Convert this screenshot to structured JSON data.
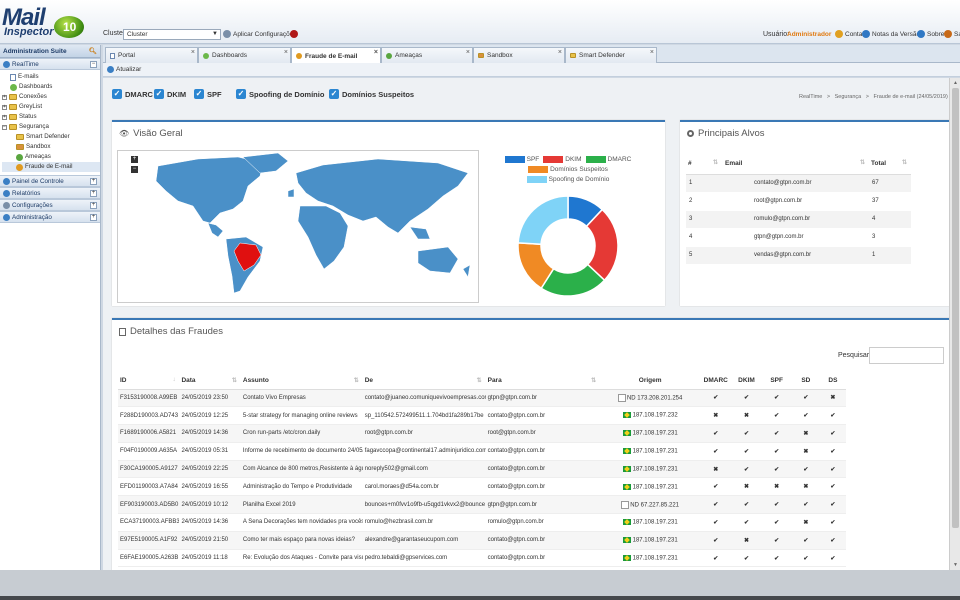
{
  "header": {
    "logo_word": "Mail",
    "logo_word2": "Inspector",
    "logo_badge": "10",
    "cluster_label": "Cluster:",
    "cluster_value": "Cluster",
    "apply_label": "Aplicar Configurações",
    "user_label": "Usuário:",
    "user_name": "Administrador",
    "links": [
      "Conta",
      "Notas da Versão",
      "Sobre",
      "Sa"
    ]
  },
  "sidebar": {
    "title": "Administration Suite",
    "realtime": "RealTime",
    "tree": [
      {
        "label": "E-mails",
        "level": 1,
        "icon": "doc"
      },
      {
        "label": "Dashboards",
        "level": 1,
        "icon": "globe"
      },
      {
        "label": "Conexões",
        "level": 0,
        "icon": "folder"
      },
      {
        "label": "GreyList",
        "level": 0,
        "icon": "folder"
      },
      {
        "label": "Status",
        "level": 0,
        "icon": "folder"
      },
      {
        "label": "Segurança",
        "level": 0,
        "icon": "folder"
      },
      {
        "label": "Smart Defender",
        "level": 2,
        "icon": "folder"
      },
      {
        "label": "Sandbox",
        "level": 2,
        "icon": "box"
      },
      {
        "label": "Ameaças",
        "level": 2,
        "icon": "bug"
      },
      {
        "label": "Fraude de E-mail",
        "level": 2,
        "icon": "fraud"
      }
    ],
    "sections": [
      "Painel de Controle",
      "Relatórios",
      "Configurações",
      "Administração"
    ]
  },
  "tabs": [
    "Portal",
    "Dashboards",
    "Fraude de E-mail",
    "Ameaças",
    "Sandbox",
    "Smart Defender"
  ],
  "toolbar": {
    "refresh": "Atualizar"
  },
  "filters": [
    "DMARC",
    "DKIM",
    "SPF",
    "Spoofing de Domínio",
    "Domínios Suspeitos"
  ],
  "breadcrumb": {
    "items": [
      "RealTime",
      "Segurança",
      "Fraude de e-mail"
    ],
    "date": "24/05/2019",
    "sep": ">"
  },
  "overview": {
    "title": "Visão Geral",
    "zoom_in": "+",
    "zoom_out": "−",
    "legend": [
      {
        "label": "SPF",
        "color": "#1f77d0"
      },
      {
        "label": "DKIM",
        "color": "#e53935"
      },
      {
        "label": "DMARC",
        "color": "#2bb04a"
      },
      {
        "label": "Domínios Suspeitos",
        "color": "#f08a24"
      },
      {
        "label": "Spoofing de Domínio",
        "color": "#7fd3f7"
      }
    ],
    "colors": {
      "map": "#4a90c8",
      "highlight": "#e01010"
    }
  },
  "chart_data": {
    "type": "pie",
    "categories": [
      "SPF",
      "DKIM",
      "DMARC",
      "Domínios Suspeitos",
      "Spoofing de Domínio"
    ],
    "values": [
      12,
      25,
      22,
      17,
      24
    ]
  },
  "top_targets": {
    "title": "Principais Alvos",
    "columns": [
      "#",
      "Email",
      "Total"
    ],
    "rows": [
      [
        "1",
        "contato@gtpn.com.br",
        "67"
      ],
      [
        "2",
        "root@gtpn.com.br",
        "37"
      ],
      [
        "3",
        "romulo@gtpn.com.br",
        "4"
      ],
      [
        "4",
        "gtpn@gtpn.com.br",
        "3"
      ],
      [
        "5",
        "vendas@gtpn.com.br",
        "1"
      ]
    ]
  },
  "fraud_details": {
    "title": "Detalhes das Fraudes",
    "search_label": "Pesquisar",
    "columns": [
      "ID",
      "Data",
      "Assunto",
      "De",
      "Para",
      "Origem",
      "DMARC",
      "DKIM",
      "SPF",
      "SD",
      "DS"
    ],
    "rows": [
      {
        "id": "F3153190008.A99EB",
        "data": "24/05/2019 23:50",
        "assunto": "Contato Vivo Empresas",
        "de": "contato@juaneo.comuniquevivoempresas.cor",
        "para": "gtpn@gtpn.com.br",
        "origem": "ND 173.208.201.254",
        "origem_type": "broken",
        "checks": [
          1,
          1,
          1,
          1,
          0
        ]
      },
      {
        "id": "F288D190003.AD743",
        "data": "24/05/2019 12:25",
        "assunto": "5-star strategy for managing online reviews",
        "de": "sp_110542.572499511.1.704bd1fa289b17be",
        "para": "contato@gtpn.com.br",
        "origem": "187.108.197.232",
        "origem_type": "flag",
        "checks": [
          0,
          0,
          1,
          1,
          1
        ]
      },
      {
        "id": "F1689190006.A5821",
        "data": "24/05/2019 14:36",
        "assunto": "Cron run-parts /etc/cron.daily",
        "de": "root@gtpn.com.br",
        "para": "root@gtpn.com.br",
        "origem": "187.108.197.231",
        "origem_type": "flag",
        "checks": [
          1,
          1,
          1,
          0,
          1
        ]
      },
      {
        "id": "F04F0190009.A635A",
        "data": "24/05/2019 05:31",
        "assunto": "Informe de recebimento de documento 24/05/",
        "de": "fagavccopa@continental17.adminjuridico.com",
        "para": "contato@gtpn.com.br",
        "origem": "187.108.197.231",
        "origem_type": "flag",
        "checks": [
          1,
          1,
          1,
          0,
          1
        ]
      },
      {
        "id": "F30CA190005.A9127",
        "data": "24/05/2019 22:25",
        "assunto": "Com Alcance de 800 metros,Resistente à águ",
        "de": "noreply502@gmail.com",
        "para": "contato@gtpn.com.br",
        "origem": "187.108.197.231",
        "origem_type": "flag",
        "checks": [
          0,
          1,
          1,
          1,
          1
        ]
      },
      {
        "id": "EFD01190003.A7A84",
        "data": "24/05/2019 16:55",
        "assunto": "Administração do Tempo e Produtividade",
        "de": "carol.moraes@d54a.com.br",
        "para": "contato@gtpn.com.br",
        "origem": "187.108.197.231",
        "origem_type": "flag",
        "checks": [
          1,
          0,
          0,
          0,
          1
        ]
      },
      {
        "id": "EF903190003.AD5B0",
        "data": "24/05/2019 10:12",
        "assunto": "Planilha Excel 2019",
        "de": "bounces+m0fvv1o9fb-u5qgd1vkvx2@bounce",
        "para": "gtpn@gtpn.com.br",
        "origem": "ND 67.227.85.221",
        "origem_type": "broken",
        "checks": [
          1,
          1,
          1,
          1,
          1
        ]
      },
      {
        "id": "ECA37190003.AFBB3",
        "data": "24/05/2019 14:36",
        "assunto": "A Sena Decorações tem novidades pra vocês",
        "de": "romulo@hezbrasil.com.br",
        "para": "romulo@gtpn.com.br",
        "origem": "187.108.197.231",
        "origem_type": "flag",
        "checks": [
          1,
          1,
          1,
          0,
          1
        ]
      },
      {
        "id": "E97E5190005.A1F92",
        "data": "24/05/2019 21:50",
        "assunto": "Como ter mais espaço para novas ideias?",
        "de": "alexandre@garantaseucupom.com",
        "para": "contato@gtpn.com.br",
        "origem": "187.108.197.231",
        "origem_type": "flag",
        "checks": [
          1,
          0,
          1,
          1,
          1
        ]
      },
      {
        "id": "E6FAE190005.A263B",
        "data": "24/05/2019 11:18",
        "assunto": "Re: Evolução dos Ataques - Convite para visu",
        "de": "pedro.tebaldi@gpservices.com",
        "para": "contato@gtpn.com.br",
        "origem": "187.108.197.231",
        "origem_type": "flag",
        "checks": [
          1,
          1,
          1,
          1,
          1
        ]
      }
    ]
  }
}
